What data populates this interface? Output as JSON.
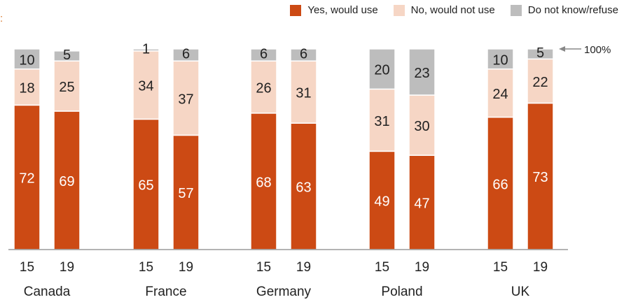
{
  "corner_text": ":",
  "legend": [
    {
      "label": "Yes, would use",
      "color": "#cc4a14"
    },
    {
      "label": "No, would not use",
      "color": "#f6d6c5"
    },
    {
      "label": "Do not know/refuse",
      "color": "#bdbdbd"
    }
  ],
  "annotation": "100%",
  "chart_data": {
    "type": "bar",
    "stacked": true,
    "ylim": [
      0,
      100
    ],
    "groups": [
      {
        "name": "Canada",
        "bars": [
          {
            "year": "15",
            "yes": 72,
            "no": 18,
            "dk": 10
          },
          {
            "year": "19",
            "yes": 69,
            "no": 25,
            "dk": 5
          }
        ]
      },
      {
        "name": "France",
        "bars": [
          {
            "year": "15",
            "yes": 65,
            "no": 34,
            "dk": 1
          },
          {
            "year": "19",
            "yes": 57,
            "no": 37,
            "dk": 6
          }
        ]
      },
      {
        "name": "Germany",
        "bars": [
          {
            "year": "15",
            "yes": 68,
            "no": 26,
            "dk": 6
          },
          {
            "year": "19",
            "yes": 63,
            "no": 31,
            "dk": 6
          }
        ]
      },
      {
        "name": "Poland",
        "bars": [
          {
            "year": "15",
            "yes": 49,
            "no": 31,
            "dk": 20
          },
          {
            "year": "19",
            "yes": 47,
            "no": 30,
            "dk": 23
          }
        ]
      },
      {
        "name": "UK",
        "bars": [
          {
            "year": "15",
            "yes": 66,
            "no": 24,
            "dk": 10
          },
          {
            "year": "19",
            "yes": 73,
            "no": 22,
            "dk": 5
          }
        ]
      }
    ]
  }
}
